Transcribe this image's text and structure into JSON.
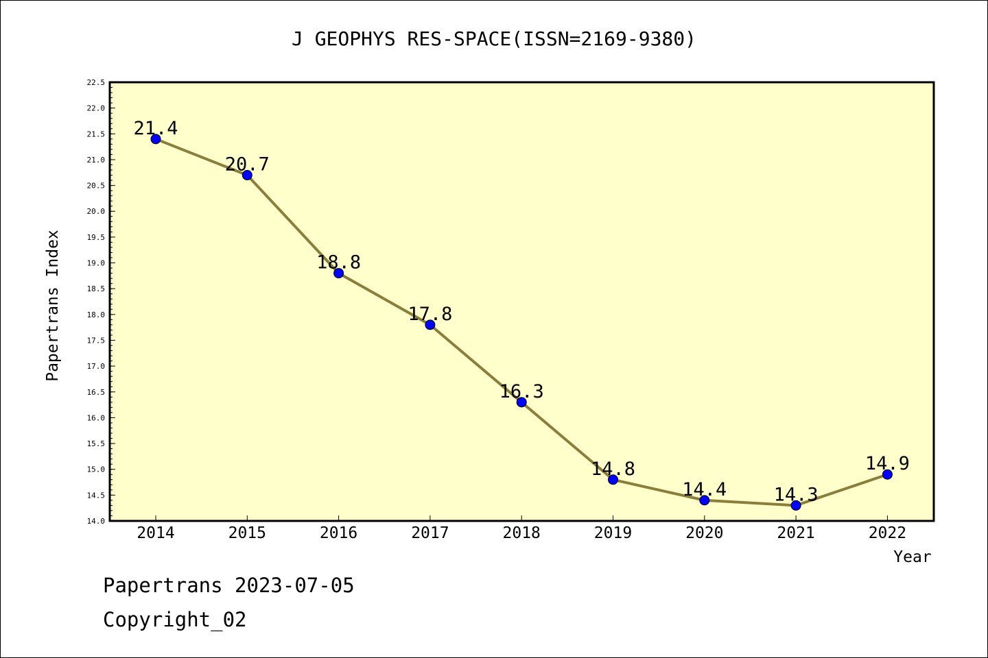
{
  "chart_data": {
    "type": "line",
    "title": "J GEOPHYS RES-SPACE(ISSN=2169-9380)",
    "xlabel": "Year",
    "ylabel": "Papertrans Index",
    "categories": [
      "2014",
      "2015",
      "2016",
      "2017",
      "2018",
      "2019",
      "2020",
      "2021",
      "2022"
    ],
    "values": [
      21.4,
      20.7,
      18.8,
      17.8,
      16.3,
      14.8,
      14.4,
      14.3,
      14.9
    ],
    "data_labels": [
      "21.4",
      "20.7",
      "18.8",
      "17.8",
      "16.3",
      "14.8",
      "14.4",
      "14.3",
      "14.9"
    ],
    "ylim": [
      14.0,
      22.5
    ],
    "yticks": [
      "14.0",
      "14.5",
      "15.0",
      "15.5",
      "16.0",
      "16.5",
      "17.0",
      "17.5",
      "18.0",
      "18.5",
      "19.0",
      "19.5",
      "20.0",
      "20.5",
      "21.0",
      "21.5",
      "22.0",
      "22.5"
    ],
    "grid": false,
    "legend": "none",
    "colors": {
      "plot_background": "#ffffcc",
      "line": "#8b7d3a",
      "marker": "#0000ff",
      "marker_edge": "#000000"
    }
  },
  "footer": {
    "line1": "Papertrans 2023-07-05",
    "line2": "Copyright_02"
  }
}
